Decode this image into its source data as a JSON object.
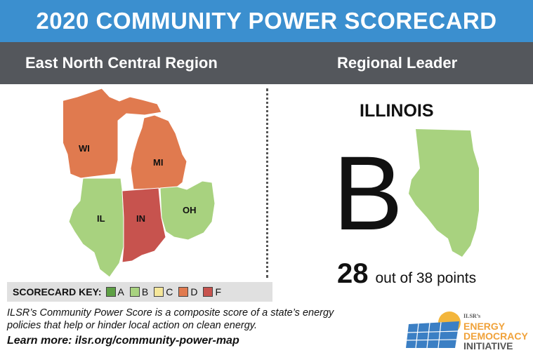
{
  "header": {
    "title": "2020 COMMUNITY POWER SCORECARD"
  },
  "subheader": {
    "region": "East North Central Region",
    "leader_label": "Regional Leader"
  },
  "map": {
    "states": [
      {
        "abbr": "WI",
        "grade": "D",
        "color": "#e07a4f"
      },
      {
        "abbr": "MI",
        "grade": "D",
        "color": "#e07a4f"
      },
      {
        "abbr": "IL",
        "grade": "B",
        "color": "#a8d27f"
      },
      {
        "abbr": "IN",
        "grade": "F",
        "color": "#c7534e"
      },
      {
        "abbr": "OH",
        "grade": "B",
        "color": "#a8d27f"
      }
    ]
  },
  "leader": {
    "state": "ILLINOIS",
    "grade": "B",
    "points": "28",
    "points_suffix": "out of 38 points"
  },
  "key": {
    "title": "SCORECARD KEY:",
    "items": [
      {
        "label": "A",
        "color": "#5ea045"
      },
      {
        "label": "B",
        "color": "#a8d27f"
      },
      {
        "label": "C",
        "color": "#f5e79a"
      },
      {
        "label": "D",
        "color": "#e07a4f"
      },
      {
        "label": "F",
        "color": "#c7534e"
      }
    ]
  },
  "footer": {
    "description": "ILSR’s Community Power Score is a composite score of a state’s energy policies that help or hinder local action on clean energy.",
    "learn_more": "Learn more: ilsr.org/community-power-map"
  },
  "logo": {
    "org": "ILSR’s",
    "line1": "ENERGY",
    "line2": "DEMOCRACY",
    "line3": "INITIATIVE"
  }
}
